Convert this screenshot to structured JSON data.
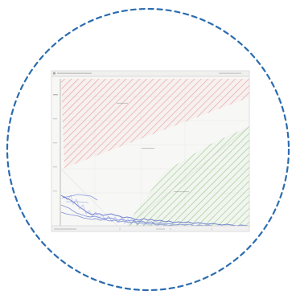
{
  "thumbnail": {
    "window_title": "",
    "top_right_value": "",
    "region_labels": {
      "top": "",
      "middle": "",
      "lower_right": ""
    },
    "bottom_left_readout": "",
    "bottom_center_readout": ""
  },
  "colors": {
    "frame_dash": "#2b6cb0",
    "paper": "#f7f7f5",
    "hatch_red": "#e58d8d",
    "hatch_green": "#88c17a",
    "trace_blue": "#4f63c9",
    "ink_gray": "#8d8d8d"
  },
  "icons": {
    "frame": "dashed-circle",
    "panel": "photo-thumbnail"
  }
}
